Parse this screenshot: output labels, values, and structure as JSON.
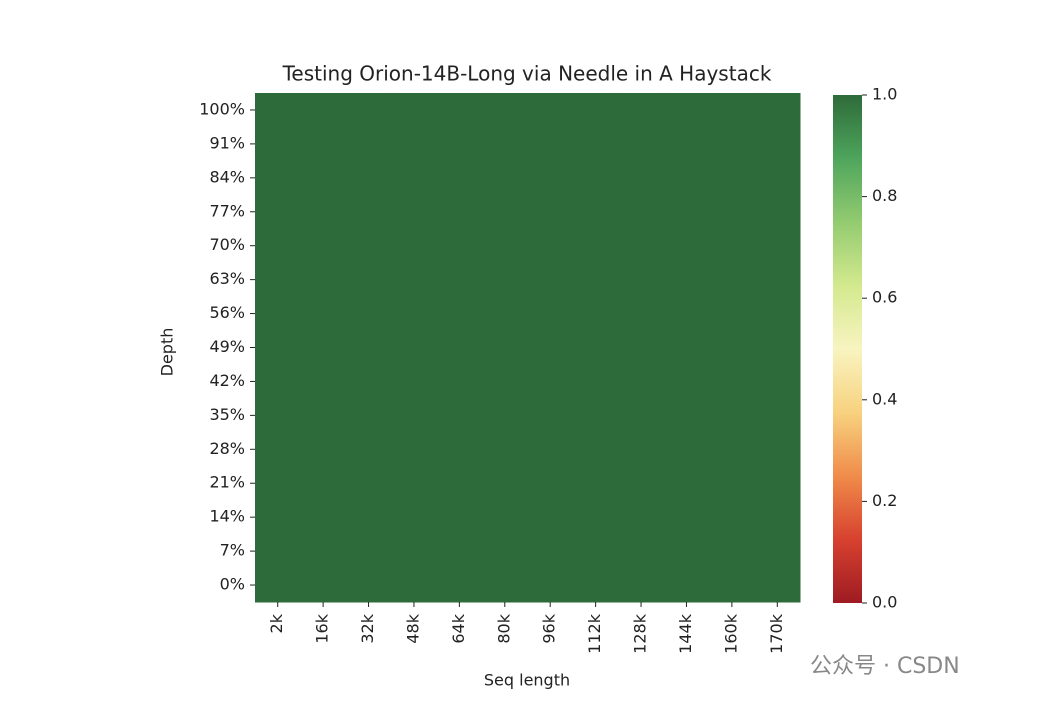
{
  "chart_data": {
    "type": "heatmap",
    "title": "Testing Orion-14B-Long via Needle in A Haystack",
    "x_label": "Seq length",
    "y_label": "Depth",
    "x_categories": [
      "2k",
      "16k",
      "32k",
      "48k",
      "64k",
      "80k",
      "96k",
      "112k",
      "128k",
      "144k",
      "160k",
      "170k"
    ],
    "y_categories": [
      "100%",
      "91%",
      "84%",
      "77%",
      "70%",
      "63%",
      "56%",
      "49%",
      "42%",
      "35%",
      "28%",
      "21%",
      "14%",
      "7%",
      "0%"
    ],
    "values": [
      [
        1,
        1,
        1,
        1,
        1,
        1,
        1,
        1,
        1,
        1,
        1,
        1
      ],
      [
        1,
        1,
        1,
        1,
        1,
        1,
        1,
        1,
        1,
        1,
        1,
        1
      ],
      [
        1,
        1,
        1,
        1,
        1,
        1,
        1,
        1,
        1,
        1,
        1,
        1
      ],
      [
        1,
        1,
        1,
        1,
        1,
        1,
        1,
        1,
        1,
        1,
        1,
        1
      ],
      [
        1,
        1,
        1,
        1,
        1,
        1,
        1,
        1,
        1,
        1,
        1,
        1
      ],
      [
        1,
        1,
        1,
        1,
        1,
        1,
        1,
        1,
        1,
        1,
        1,
        1
      ],
      [
        1,
        1,
        1,
        1,
        1,
        1,
        1,
        1,
        1,
        1,
        1,
        1
      ],
      [
        1,
        1,
        1,
        1,
        1,
        1,
        1,
        1,
        1,
        1,
        1,
        1
      ],
      [
        1,
        1,
        1,
        1,
        1,
        1,
        1,
        1,
        1,
        1,
        1,
        1
      ],
      [
        1,
        1,
        1,
        1,
        1,
        1,
        1,
        1,
        1,
        1,
        1,
        1
      ],
      [
        1,
        1,
        1,
        1,
        1,
        1,
        1,
        1,
        1,
        1,
        1,
        1
      ],
      [
        1,
        1,
        1,
        1,
        1,
        1,
        1,
        1,
        1,
        1,
        1,
        1
      ],
      [
        1,
        1,
        1,
        1,
        1,
        1,
        1,
        1,
        1,
        1,
        1,
        1
      ],
      [
        1,
        1,
        1,
        1,
        1,
        1,
        1,
        1,
        1,
        1,
        1,
        1
      ],
      [
        1,
        1,
        1,
        1,
        1,
        1,
        1,
        1,
        1,
        1,
        1,
        1
      ]
    ],
    "clim": [
      0,
      1
    ],
    "cticks": [
      {
        "value": 0,
        "label": "0.0"
      },
      0.2,
      0.4,
      0.6,
      0.8,
      {
        "value": 1,
        "label": "1.0"
      }
    ],
    "colormap": [
      "#9e1b22",
      "#d7412f",
      "#f08c4a",
      "#f7d27f",
      "#f8f4c0",
      "#d3e98e",
      "#93cb70",
      "#4ea55c",
      "#2e6b3a"
    ],
    "watermark": "公众号 · CSDN"
  }
}
